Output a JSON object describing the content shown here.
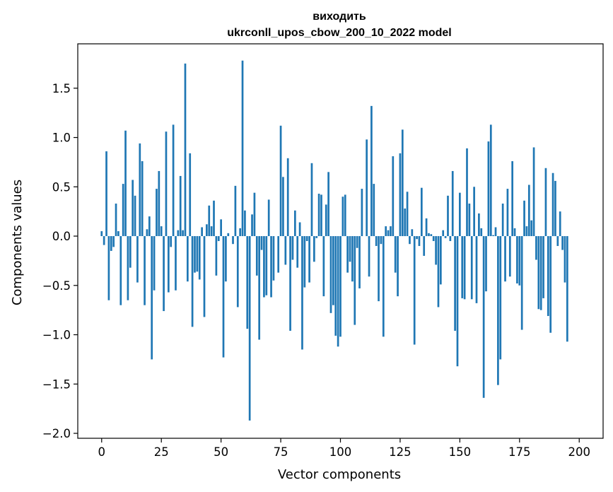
{
  "chart_data": {
    "type": "bar",
    "title": "виходить",
    "subtitle": "ukrconll_upos_cbow_200_10_2022 model",
    "xlabel": "Vector components",
    "ylabel": "Components values",
    "xlim": [
      -10,
      210
    ],
    "ylim": [
      -2.05,
      1.95
    ],
    "xticks": [
      0,
      25,
      50,
      75,
      100,
      125,
      150,
      175,
      200
    ],
    "xtick_labels": [
      "0",
      "25",
      "50",
      "75",
      "100",
      "125",
      "150",
      "175",
      "200"
    ],
    "yticks": [
      -2.0,
      -1.5,
      -1.0,
      -0.5,
      0.0,
      0.5,
      1.0,
      1.5
    ],
    "ytick_labels": [
      "−2.0",
      "−1.5",
      "−1.0",
      "−0.5",
      "0.0",
      "0.5",
      "1.0",
      "1.5"
    ],
    "grid": false,
    "legend": "none",
    "color": "#1f77b4",
    "values": [
      0.05,
      -0.09,
      0.86,
      -0.65,
      -0.15,
      -0.11,
      0.33,
      0.05,
      -0.7,
      0.53,
      1.07,
      -0.65,
      -0.32,
      0.57,
      0.41,
      -0.47,
      0.94,
      0.76,
      -0.7,
      0.07,
      0.2,
      -1.25,
      -0.55,
      0.48,
      0.66,
      0.1,
      -0.76,
      1.06,
      -0.57,
      -0.11,
      1.13,
      -0.55,
      0.06,
      0.61,
      0.06,
      1.75,
      -0.46,
      0.84,
      -0.92,
      -0.37,
      -0.36,
      -0.44,
      0.09,
      -0.82,
      0.12,
      0.31,
      0.1,
      0.36,
      -0.4,
      -0.05,
      0.17,
      -1.23,
      -0.46,
      0.03,
      0.0,
      -0.08,
      0.51,
      -0.72,
      0.08,
      1.78,
      0.26,
      -0.94,
      -1.87,
      0.22,
      0.44,
      -0.4,
      -1.05,
      -0.14,
      -0.62,
      -0.6,
      0.37,
      -0.62,
      -0.45,
      0.0,
      -0.37,
      1.12,
      0.6,
      -0.29,
      0.79,
      -0.96,
      -0.24,
      0.26,
      -0.32,
      0.14,
      -1.15,
      -0.52,
      -0.05,
      -0.47,
      0.74,
      -0.26,
      -0.02,
      0.43,
      0.42,
      -0.61,
      0.32,
      0.65,
      -0.78,
      -0.7,
      -1.01,
      -1.12,
      -1.02,
      0.4,
      0.42,
      -0.37,
      -0.26,
      -0.46,
      -0.9,
      -0.12,
      -0.53,
      0.48,
      0.0,
      0.98,
      -0.41,
      1.32,
      0.53,
      -0.1,
      -0.66,
      -0.08,
      -1.02,
      0.1,
      0.06,
      0.1,
      0.81,
      -0.37,
      -0.61,
      0.84,
      1.08,
      0.28,
      0.45,
      -0.08,
      0.07,
      -1.1,
      -0.03,
      -0.1,
      0.49,
      -0.2,
      0.18,
      0.03,
      0.02,
      -0.05,
      -0.29,
      -0.72,
      -0.49,
      0.06,
      -0.02,
      0.41,
      -0.05,
      0.66,
      -0.96,
      -1.32,
      0.44,
      -0.63,
      -0.64,
      0.89,
      0.33,
      -0.64,
      0.5,
      -0.68,
      0.23,
      0.08,
      -1.64,
      -0.56,
      0.96,
      1.13,
      0.01,
      0.09,
      -1.51,
      -1.25,
      0.33,
      -0.46,
      0.48,
      -0.41,
      0.76,
      0.08,
      -0.48,
      -0.5,
      -0.95,
      0.36,
      0.1,
      0.52,
      0.16,
      0.9,
      -0.24,
      -0.74,
      -0.75,
      -0.63,
      0.69,
      -0.81,
      -0.98,
      0.64,
      0.56,
      -0.1,
      0.25,
      -0.14,
      -0.47,
      -1.07
    ]
  }
}
